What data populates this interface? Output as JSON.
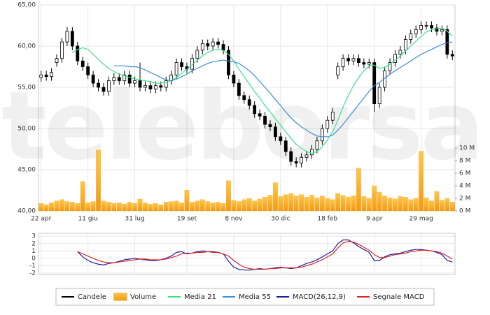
{
  "watermark": "teleborsa",
  "chart_data": [
    {
      "type": "candlestick",
      "categories": [
        "22 apr",
        null,
        null,
        null,
        null,
        null,
        null,
        null,
        null,
        "11 giu",
        null,
        null,
        null,
        null,
        null,
        null,
        null,
        null,
        "31 lug",
        null,
        null,
        null,
        null,
        null,
        null,
        null,
        null,
        null,
        "19 set",
        null,
        null,
        null,
        null,
        null,
        null,
        null,
        null,
        "8 nov",
        null,
        null,
        null,
        null,
        null,
        null,
        null,
        null,
        "30 dic",
        null,
        null,
        null,
        null,
        null,
        null,
        null,
        null,
        "18 feb",
        null,
        null,
        null,
        null,
        null,
        null,
        null,
        null,
        "9 apr",
        null,
        null,
        null,
        null,
        null,
        null,
        null,
        null,
        "29 mag",
        null,
        null,
        null,
        null,
        null,
        null
      ],
      "ylim": [
        40,
        65
      ],
      "yticks": [
        {
          "value": 40,
          "label": "40,00"
        },
        {
          "value": 45,
          "label": "45,00"
        },
        {
          "value": 50,
          "label": "50,00"
        },
        {
          "value": 55,
          "label": "55,00"
        },
        {
          "value": 60,
          "label": "60,00"
        },
        {
          "value": 65,
          "label": "65,00"
        }
      ],
      "y2lim": [
        0,
        32.8
      ],
      "y2ticks": [
        {
          "value": 0,
          "label": "0 M"
        },
        {
          "value": 2,
          "label": "2 M"
        },
        {
          "value": 4,
          "label": "4 M"
        },
        {
          "value": 6,
          "label": "6 M"
        },
        {
          "value": 8,
          "label": "8 M"
        },
        {
          "value": 10,
          "label": "10 M"
        }
      ],
      "grid": true,
      "series": [
        {
          "name": "Candele",
          "type": "candlestick",
          "color": "#000000",
          "open": [
            56.2,
            56.5,
            56.3,
            58.0,
            58.5,
            60.5,
            61.8,
            60.0,
            58.2,
            57.5,
            56.5,
            55.5,
            55.0,
            54.5,
            55.8,
            56.2,
            55.8,
            56.5,
            55.5,
            55.8,
            55.0,
            55.2,
            54.8,
            55.2,
            55.0,
            55.8,
            56.5,
            58.0,
            57.5,
            57.2,
            58.5,
            59.5,
            60.3,
            60.0,
            60.5,
            60.2,
            59.5,
            56.5,
            55.5,
            54.0,
            53.5,
            52.8,
            51.8,
            51.5,
            50.5,
            50.2,
            49.0,
            48.5,
            47.2,
            46.0,
            45.8,
            46.5,
            46.8,
            47.5,
            48.5,
            50.0,
            51.0,
            56.5,
            57.5,
            58.5,
            58.2,
            58.5,
            58.0,
            57.8,
            58.0,
            53.0,
            55.0,
            57.0,
            58.0,
            59.0,
            59.5,
            60.8,
            61.5,
            62.0,
            62.5,
            62.5,
            62.2,
            61.8,
            62.0,
            59.0
          ],
          "high": [
            57.0,
            57.0,
            57.3,
            59.0,
            61.0,
            62.3,
            62.3,
            60.5,
            58.7,
            58.0,
            57.0,
            56.0,
            55.5,
            56.3,
            56.7,
            56.7,
            57.0,
            57.0,
            56.3,
            58.0,
            55.7,
            55.7,
            55.7,
            55.7,
            56.3,
            57.0,
            58.5,
            58.5,
            58.0,
            59.0,
            60.0,
            60.8,
            60.8,
            61.0,
            61.0,
            60.7,
            60.0,
            57.0,
            56.0,
            54.5,
            54.0,
            53.3,
            52.3,
            52.0,
            51.0,
            50.7,
            49.5,
            49.0,
            47.7,
            46.5,
            47.0,
            47.3,
            48.0,
            49.0,
            50.5,
            51.5,
            52.5,
            58.0,
            59.0,
            59.0,
            59.0,
            59.0,
            58.5,
            58.5,
            58.5,
            55.5,
            57.5,
            58.5,
            59.5,
            60.0,
            61.3,
            62.0,
            62.5,
            63.0,
            63.0,
            63.0,
            62.7,
            62.5,
            62.5,
            59.5
          ],
          "low": [
            55.7,
            55.8,
            55.8,
            57.5,
            58.0,
            60.0,
            59.5,
            57.7,
            57.0,
            56.0,
            55.0,
            54.5,
            54.0,
            54.0,
            55.3,
            55.3,
            55.3,
            55.0,
            55.0,
            54.5,
            54.5,
            54.3,
            54.3,
            54.5,
            54.5,
            55.3,
            56.0,
            57.0,
            56.7,
            56.7,
            58.0,
            59.0,
            59.5,
            59.5,
            59.7,
            59.0,
            56.0,
            55.0,
            53.5,
            53.0,
            52.3,
            51.3,
            51.0,
            50.0,
            49.7,
            48.5,
            48.0,
            46.7,
            45.5,
            45.3,
            45.3,
            46.0,
            46.3,
            47.0,
            48.0,
            49.5,
            50.5,
            56.0,
            57.0,
            57.7,
            57.7,
            57.5,
            57.3,
            57.3,
            52.0,
            52.5,
            54.5,
            56.5,
            57.5,
            58.5,
            59.0,
            60.3,
            61.0,
            61.5,
            62.0,
            61.7,
            61.3,
            61.3,
            58.5,
            58.3
          ],
          "close": [
            56.5,
            56.3,
            56.8,
            58.5,
            60.5,
            61.8,
            60.0,
            58.2,
            57.5,
            56.5,
            55.5,
            55.0,
            54.5,
            55.8,
            56.2,
            55.8,
            56.5,
            55.5,
            55.8,
            55.0,
            55.2,
            54.8,
            55.2,
            55.0,
            55.8,
            56.5,
            58.0,
            57.5,
            57.2,
            58.5,
            59.5,
            60.3,
            60.0,
            60.5,
            60.2,
            59.5,
            56.5,
            55.5,
            54.0,
            53.5,
            52.8,
            51.8,
            51.5,
            50.5,
            50.2,
            49.0,
            48.5,
            47.2,
            46.0,
            45.8,
            46.5,
            46.8,
            47.5,
            48.5,
            50.0,
            51.0,
            52.0,
            57.5,
            58.5,
            58.2,
            58.5,
            58.0,
            57.8,
            58.0,
            53.0,
            55.0,
            57.0,
            58.0,
            59.0,
            59.5,
            60.8,
            61.5,
            62.0,
            62.5,
            62.5,
            62.2,
            61.8,
            62.0,
            59.0,
            58.8
          ]
        },
        {
          "name": "Volume",
          "type": "bar",
          "axis": "y2",
          "color": "#f5a21b",
          "values": [
            1.2,
            1.0,
            1.3,
            1.6,
            1.8,
            1.5,
            1.4,
            1.2,
            4.7,
            1.3,
            1.5,
            9.7,
            1.6,
            1.4,
            1.2,
            1.3,
            1.1,
            1.4,
            1.2,
            1.9,
            1.3,
            1.1,
            1.2,
            1.0,
            1.4,
            1.5,
            1.6,
            1.3,
            3.3,
            1.4,
            1.6,
            1.8,
            1.5,
            1.3,
            1.4,
            1.2,
            4.8,
            1.7,
            1.5,
            1.8,
            2.0,
            1.6,
            1.9,
            2.2,
            2.5,
            4.5,
            2.3,
            2.6,
            2.8,
            2.4,
            2.6,
            2.2,
            2.5,
            2.1,
            2.4,
            2.0,
            1.8,
            2.8,
            2.5,
            2.2,
            2.4,
            6.8,
            2.3,
            2.0,
            4.0,
            3.0,
            2.4,
            2.1,
            1.9,
            2.3,
            2.2,
            1.8,
            2.0,
            9.5,
            2.1,
            1.6,
            3.1,
            1.7,
            2.0,
            1.4
          ]
        },
        {
          "name": "Media 21",
          "type": "line",
          "color": "#3ee08a",
          "values": [
            null,
            null,
            null,
            null,
            null,
            null,
            59.2,
            59.6,
            59.8,
            59.6,
            59.0,
            58.4,
            57.8,
            57.3,
            56.9,
            56.6,
            56.4,
            56.2,
            56.0,
            55.9,
            55.8,
            55.7,
            55.5,
            55.5,
            55.6,
            55.8,
            56.2,
            56.7,
            57.2,
            57.7,
            58.3,
            58.8,
            59.2,
            59.5,
            59.6,
            59.5,
            59.0,
            58.2,
            57.2,
            56.3,
            55.4,
            54.5,
            53.7,
            52.8,
            52.0,
            51.2,
            50.4,
            49.6,
            48.8,
            48.1,
            47.6,
            47.2,
            47.0,
            47.2,
            47.8,
            48.6,
            49.6,
            51.0,
            52.6,
            54.0,
            55.2,
            56.2,
            57.0,
            57.6,
            57.7,
            57.3,
            57.4,
            57.8,
            58.3,
            58.8,
            59.4,
            60.0,
            60.6,
            61.2,
            61.7,
            62.0,
            62.1,
            62.2,
            61.8,
            61.2
          ]
        },
        {
          "name": "Media 55",
          "type": "line",
          "color": "#3a8fd8",
          "values": [
            null,
            null,
            null,
            null,
            null,
            null,
            null,
            null,
            null,
            null,
            null,
            null,
            null,
            null,
            57.6,
            57.6,
            57.6,
            57.5,
            57.5,
            57.4,
            57.1,
            56.8,
            56.5,
            56.2,
            55.9,
            55.8,
            56.0,
            56.3,
            56.6,
            57.0,
            57.3,
            57.6,
            57.9,
            58.1,
            58.2,
            58.3,
            58.2,
            58.1,
            57.9,
            57.5,
            57.0,
            56.4,
            55.7,
            55.0,
            54.3,
            53.5,
            52.8,
            52.0,
            51.3,
            50.7,
            50.2,
            49.8,
            49.4,
            49.1,
            49.0,
            49.0,
            49.2,
            49.8,
            50.5,
            51.3,
            52.1,
            52.9,
            53.7,
            54.5,
            55.2,
            55.6,
            56.1,
            56.6,
            57.0,
            57.4,
            57.8,
            58.2,
            58.6,
            59.0,
            59.3,
            59.6,
            59.9,
            60.2,
            60.4,
            60.5
          ]
        }
      ]
    },
    {
      "type": "line",
      "ylim": [
        -2.2,
        3.4
      ],
      "yticks": [
        3,
        2,
        1,
        0,
        -1,
        -2
      ],
      "grid": true,
      "series": [
        {
          "name": "MACD(26,12,9)",
          "type": "line",
          "color": "#1c1c9c",
          "values": [
            null,
            null,
            null,
            null,
            null,
            null,
            null,
            0.9,
            0.2,
            -0.3,
            -0.6,
            -0.8,
            -0.9,
            -0.7,
            -0.6,
            -0.4,
            -0.2,
            -0.1,
            0.0,
            -0.1,
            -0.2,
            -0.3,
            -0.3,
            -0.2,
            0.0,
            0.3,
            0.8,
            0.9,
            0.6,
            0.7,
            0.9,
            1.0,
            0.9,
            0.9,
            0.8,
            0.6,
            -0.4,
            -1.2,
            -1.5,
            -1.6,
            -1.6,
            -1.5,
            -1.4,
            -1.5,
            -1.4,
            -1.3,
            -1.2,
            -1.3,
            -1.4,
            -1.3,
            -1.0,
            -0.7,
            -0.5,
            -0.2,
            0.2,
            0.6,
            1.0,
            2.0,
            2.5,
            2.5,
            2.1,
            1.6,
            1.2,
            0.8,
            -0.3,
            -0.3,
            0.2,
            0.5,
            0.6,
            0.7,
            0.9,
            1.1,
            1.2,
            1.2,
            1.1,
            1.0,
            0.8,
            0.5,
            -0.3,
            -0.5
          ]
        },
        {
          "name": "Segnale MACD",
          "type": "line",
          "color": "#e02424",
          "values": [
            null,
            null,
            null,
            null,
            null,
            null,
            null,
            0.9,
            0.6,
            0.3,
            0.0,
            -0.3,
            -0.5,
            -0.6,
            -0.6,
            -0.5,
            -0.4,
            -0.3,
            -0.2,
            -0.1,
            -0.1,
            -0.2,
            -0.2,
            -0.2,
            -0.1,
            0.1,
            0.3,
            0.6,
            0.7,
            0.7,
            0.8,
            0.8,
            0.9,
            0.8,
            0.8,
            0.6,
            0.3,
            -0.3,
            -0.8,
            -1.2,
            -1.4,
            -1.5,
            -1.5,
            -1.5,
            -1.4,
            -1.4,
            -1.3,
            -1.3,
            -1.3,
            -1.3,
            -1.2,
            -1.0,
            -0.8,
            -0.5,
            -0.2,
            0.2,
            0.6,
            1.4,
            2.1,
            2.3,
            2.2,
            1.9,
            1.5,
            1.1,
            0.5,
            0.1,
            0.1,
            0.3,
            0.5,
            0.6,
            0.7,
            0.9,
            1.0,
            1.1,
            1.1,
            1.0,
            0.9,
            0.7,
            0.3,
            -0.1
          ]
        }
      ]
    }
  ]
}
